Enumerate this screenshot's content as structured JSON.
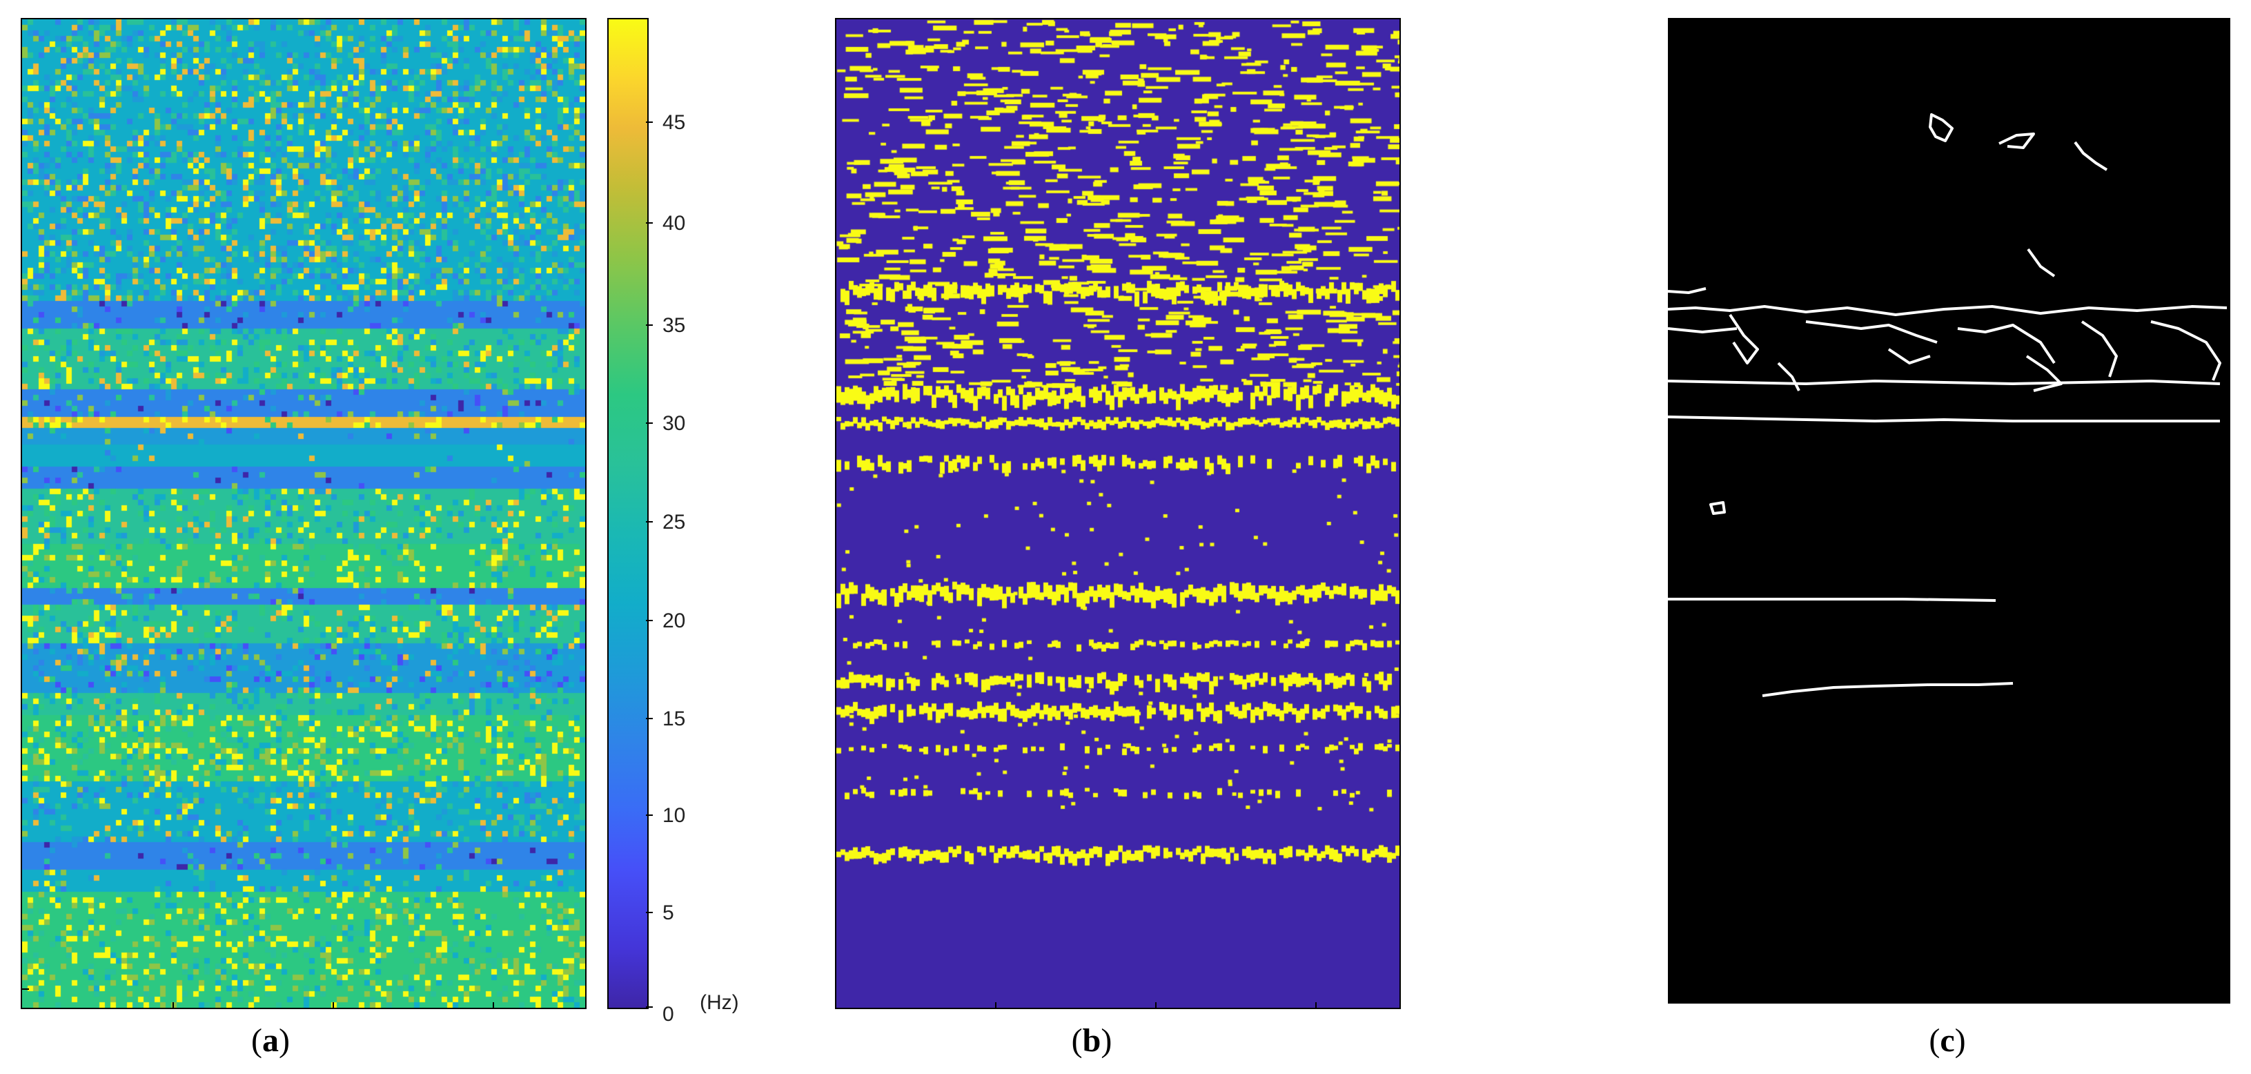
{
  "colors": {
    "panel_b_background": "#3f26a8",
    "panel_b_foreground": "#f9fb15",
    "panel_c_background": "#000000",
    "panel_c_lines": "#ffffff"
  },
  "panels": [
    {
      "id": "a",
      "caption_letter": "a",
      "content": "frequency map (parula colormap)"
    },
    {
      "id": "b",
      "caption_letter": "b",
      "content": "binary map"
    },
    {
      "id": "c",
      "caption_letter": "c",
      "content": "edge map"
    }
  ],
  "colorbar": {
    "ticks": [
      "0",
      "5",
      "10",
      "15",
      "20",
      "25",
      "30",
      "35",
      "40",
      "45"
    ],
    "unit": "(Hz)",
    "min": 0,
    "max": 50,
    "colormap": "parula"
  },
  "captions": {
    "a_open": "(",
    "a_letter": "a",
    "a_close": ")",
    "b_open": "(",
    "b_letter": "b",
    "b_close": ")",
    "c_open": "(",
    "c_letter": "c",
    "c_close": ")"
  }
}
